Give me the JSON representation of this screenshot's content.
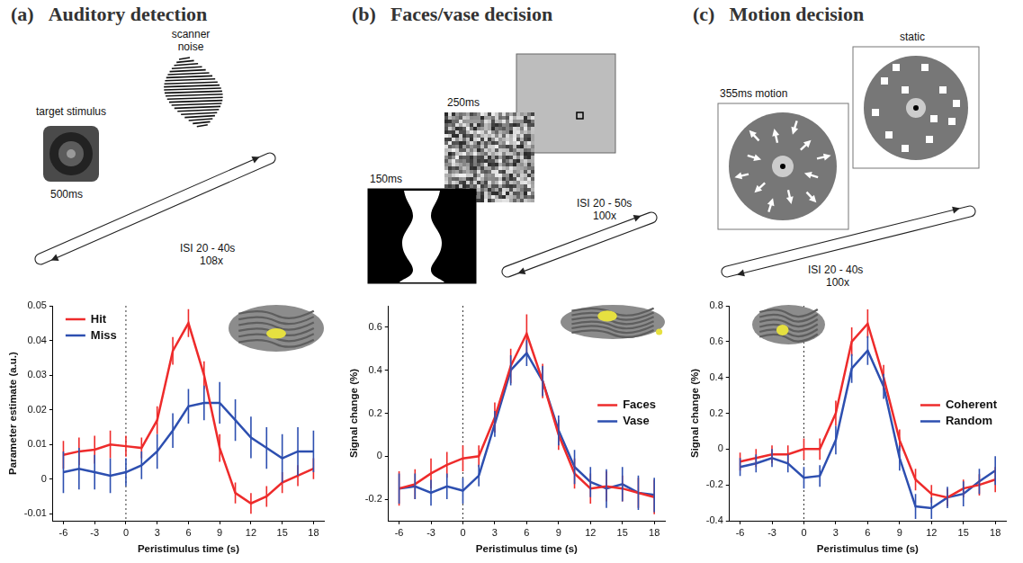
{
  "chart_data": [
    {
      "type": "line",
      "panel": "(a)",
      "title": "Auditory detection",
      "x_label": "Peristimulus time (s)",
      "y_label": "Parameter estimate (a.u.)",
      "x": [
        -6,
        -4.5,
        -3,
        -1.5,
        0,
        1.5,
        3,
        4.5,
        6,
        7.5,
        9,
        10.5,
        12,
        13.5,
        15,
        16.5,
        18
      ],
      "xlim": [
        -7,
        19
      ],
      "xticks": [
        -6,
        -3,
        0,
        3,
        6,
        9,
        12,
        15,
        18
      ],
      "ylim": [
        -0.012,
        0.05
      ],
      "yticks": [
        -0.01,
        0,
        0.01,
        0.02,
        0.03,
        0.04,
        0.05
      ],
      "vline": 0,
      "legend": "upper left",
      "grid": false,
      "series": [
        {
          "name": "Hit",
          "color": "#ee2b2b",
          "values": [
            0.007,
            0.008,
            0.0085,
            0.01,
            0.0095,
            0.009,
            0.017,
            0.037,
            0.045,
            0.03,
            0.009,
            -0.004,
            -0.007,
            -0.005,
            -0.001,
            0.001,
            0.003
          ],
          "errors": [
            0.004,
            0.004,
            0.004,
            0.004,
            0.003,
            0.003,
            0.004,
            0.004,
            0.004,
            0.004,
            0.004,
            0.003,
            0.003,
            0.003,
            0.003,
            0.003,
            0.003
          ]
        },
        {
          "name": "Miss",
          "color": "#2d4fb0",
          "values": [
            0.002,
            0.003,
            0.002,
            0.001,
            0.002,
            0.004,
            0.008,
            0.014,
            0.021,
            0.022,
            0.022,
            0.017,
            0.012,
            0.009,
            0.006,
            0.008,
            0.008
          ],
          "errors": [
            0.006,
            0.006,
            0.005,
            0.005,
            0.004,
            0.004,
            0.005,
            0.005,
            0.005,
            0.005,
            0.006,
            0.006,
            0.006,
            0.006,
            0.007,
            0.007,
            0.006
          ]
        }
      ]
    },
    {
      "type": "line",
      "panel": "(b)",
      "title": "Faces/vase decision",
      "x_label": "Peristimulus time (s)",
      "y_label": "Signal change (%)",
      "x": [
        -6,
        -4.5,
        -3,
        -1.5,
        0,
        1.5,
        3,
        4.5,
        6,
        7.5,
        9,
        10.5,
        12,
        13.5,
        15,
        16.5,
        18
      ],
      "xlim": [
        -7,
        19
      ],
      "xticks": [
        -6,
        -3,
        0,
        3,
        6,
        9,
        12,
        15,
        18
      ],
      "ylim": [
        -0.3,
        0.7
      ],
      "yticks": [
        -0.2,
        0,
        0.2,
        0.4,
        0.6
      ],
      "vline": 0,
      "legend": "right",
      "grid": false,
      "series": [
        {
          "name": "Faces",
          "color": "#ee2b2b",
          "values": [
            -0.15,
            -0.13,
            -0.08,
            -0.04,
            -0.01,
            0.0,
            0.18,
            0.42,
            0.57,
            0.35,
            0.1,
            -0.08,
            -0.15,
            -0.14,
            -0.15,
            -0.17,
            -0.19
          ],
          "errors": [
            0.08,
            0.07,
            0.07,
            0.06,
            0.06,
            0.05,
            0.07,
            0.08,
            0.09,
            0.08,
            0.07,
            0.07,
            0.07,
            0.07,
            0.06,
            0.07,
            0.08
          ]
        },
        {
          "name": "Vase",
          "color": "#2d4fb0",
          "values": [
            -0.15,
            -0.14,
            -0.17,
            -0.14,
            -0.16,
            -0.09,
            0.15,
            0.4,
            0.48,
            0.35,
            0.12,
            -0.05,
            -0.12,
            -0.15,
            -0.13,
            -0.17,
            -0.18
          ],
          "errors": [
            0.07,
            0.06,
            0.06,
            0.06,
            0.06,
            0.05,
            0.06,
            0.07,
            0.06,
            0.07,
            0.07,
            0.08,
            0.07,
            0.09,
            0.08,
            0.08,
            0.08
          ]
        }
      ]
    },
    {
      "type": "line",
      "panel": "(c)",
      "title": "Motion decision",
      "x_label": "Peristimulus time (s)",
      "y_label": "Signal change (%)",
      "x": [
        -6,
        -4.5,
        -3,
        -1.5,
        0,
        1.5,
        3,
        4.5,
        6,
        7.5,
        9,
        10.5,
        12,
        13.5,
        15,
        16.5,
        18
      ],
      "xlim": [
        -7,
        19
      ],
      "xticks": [
        -6,
        -3,
        0,
        3,
        6,
        9,
        12,
        15,
        18
      ],
      "ylim": [
        -0.4,
        0.8
      ],
      "yticks": [
        -0.4,
        -0.2,
        0,
        0.2,
        0.4,
        0.6,
        0.8
      ],
      "vline": 0,
      "legend": "right",
      "grid": false,
      "series": [
        {
          "name": "Coherent",
          "color": "#ee2b2b",
          "values": [
            -0.07,
            -0.05,
            -0.03,
            -0.03,
            0.0,
            0.0,
            0.2,
            0.6,
            0.7,
            0.4,
            0.05,
            -0.17,
            -0.25,
            -0.27,
            -0.22,
            -0.2,
            -0.17
          ],
          "errors": [
            0.05,
            0.05,
            0.05,
            0.05,
            0.06,
            0.06,
            0.07,
            0.08,
            0.08,
            0.07,
            0.06,
            0.06,
            0.05,
            0.05,
            0.05,
            0.06,
            0.07
          ]
        },
        {
          "name": "Random",
          "color": "#2d4fb0",
          "values": [
            -0.1,
            -0.08,
            -0.05,
            -0.08,
            -0.16,
            -0.15,
            0.05,
            0.45,
            0.55,
            0.35,
            -0.05,
            -0.32,
            -0.33,
            -0.27,
            -0.25,
            -0.18,
            -0.12
          ],
          "errors": [
            0.05,
            0.05,
            0.05,
            0.05,
            0.06,
            0.06,
            0.08,
            0.08,
            0.08,
            0.07,
            0.07,
            0.07,
            0.06,
            0.06,
            0.07,
            0.07,
            0.08
          ]
        }
      ]
    }
  ],
  "schematics": [
    {
      "stimulus_label": "target stimulus",
      "noise_label": "scanner noise",
      "duration": "500ms",
      "isi": "ISI 20 - 40s",
      "repetitions": "108x"
    },
    {
      "stimulus_duration": "150ms",
      "mask_duration": "250ms",
      "isi": "ISI 20 - 50s",
      "repetitions": "100x"
    },
    {
      "motion_label": "355ms motion",
      "static_label": "static",
      "isi": "ISI 20 - 40s",
      "repetitions": "100x"
    }
  ]
}
